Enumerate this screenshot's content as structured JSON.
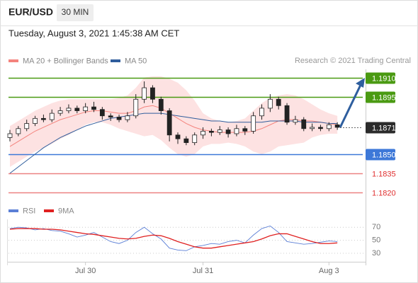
{
  "header": {
    "symbol": "EUR/USD",
    "interval": "30 MIN",
    "timestamp": "Tuesday, August 3, 2021 1:45:38 AM CET",
    "attribution": "Research © 2021 Trading Central"
  },
  "chart_data": [
    {
      "type": "candlestick",
      "ylim": [
        1.181,
        1.1917
      ],
      "up_color": "#ffffff",
      "down_color": "#222222",
      "open": [
        1.1863,
        1.1866,
        1.187,
        1.1874,
        1.1878,
        1.1877,
        1.1882,
        1.1884,
        1.1886,
        1.1884,
        1.1887,
        1.1885,
        1.188,
        1.1879,
        1.1877,
        1.188,
        1.1893,
        1.1902,
        1.1893,
        1.1884,
        1.1865,
        1.1862,
        1.1859,
        1.1865,
        1.1868,
        1.1867,
        1.1869,
        1.1866,
        1.187,
        1.1868,
        1.188,
        1.1886,
        1.1893,
        1.1888,
        1.1875,
        1.1877,
        1.187,
        1.1871,
        1.187,
        1.1873
      ],
      "high": [
        1.1869,
        1.1872,
        1.1877,
        1.188,
        1.1881,
        1.1885,
        1.1887,
        1.1889,
        1.1888,
        1.189,
        1.1891,
        1.1887,
        1.1882,
        1.1881,
        1.1883,
        1.1897,
        1.1907,
        1.1904,
        1.1895,
        1.1886,
        1.1867,
        1.1864,
        1.1867,
        1.1871,
        1.187,
        1.1872,
        1.1871,
        1.1873,
        1.1872,
        1.1883,
        1.1889,
        1.1897,
        1.1895,
        1.189,
        1.188,
        1.1879,
        1.1874,
        1.1873,
        1.1875,
        1.1875
      ],
      "low": [
        1.186,
        1.1864,
        1.1868,
        1.1872,
        1.1875,
        1.1875,
        1.188,
        1.1882,
        1.1882,
        1.1882,
        1.1883,
        1.1877,
        1.1876,
        1.1875,
        1.1875,
        1.1878,
        1.189,
        1.189,
        1.1881,
        1.186,
        1.1858,
        1.1857,
        1.1857,
        1.1862,
        1.1864,
        1.1865,
        1.1863,
        1.1864,
        1.1865,
        1.1866,
        1.1877,
        1.1883,
        1.1885,
        1.1873,
        1.1873,
        1.1868,
        1.1868,
        1.1868,
        1.1868,
        1.1869
      ],
      "close": [
        1.1866,
        1.187,
        1.1874,
        1.1878,
        1.1877,
        1.1882,
        1.1884,
        1.1886,
        1.1884,
        1.1887,
        1.1885,
        1.188,
        1.1879,
        1.1877,
        1.188,
        1.1893,
        1.1902,
        1.1893,
        1.1884,
        1.1865,
        1.1862,
        1.1859,
        1.1865,
        1.1868,
        1.1867,
        1.1869,
        1.1866,
        1.187,
        1.1868,
        1.188,
        1.1886,
        1.1893,
        1.1888,
        1.1875,
        1.1877,
        1.187,
        1.1871,
        1.187,
        1.1873,
        1.1871
      ],
      "series": [
        {
          "name": "MA 20 + Bollinger Bands",
          "color": "#f4837d",
          "band_color": "#fde2e2",
          "values": [
            1.1856,
            1.186,
            1.1864,
            1.1868,
            1.1871,
            1.1874,
            1.1877,
            1.1879,
            1.1881,
            1.1883,
            1.1884,
            1.1884,
            1.1883,
            1.1882,
            1.1882,
            1.1884,
            1.1887,
            1.1888,
            1.1886,
            1.1882,
            1.1878,
            1.1874,
            1.1871,
            1.1869,
            1.1868,
            1.1867,
            1.1867,
            1.1867,
            1.1867,
            1.1868,
            1.187,
            1.1873,
            1.1876,
            1.1877,
            1.1877,
            1.1876,
            1.1876,
            1.1875,
            1.1874,
            1.1873
          ],
          "upper": [
            1.1872,
            1.1876,
            1.188,
            1.1884,
            1.1887,
            1.189,
            1.1892,
            1.1893,
            1.1893,
            1.1893,
            1.1893,
            1.1893,
            1.1893,
            1.1894,
            1.1896,
            1.1902,
            1.191,
            1.1911,
            1.1911,
            1.1909,
            1.1906,
            1.19,
            1.1892,
            1.1882,
            1.1878,
            1.1876,
            1.1875,
            1.1876,
            1.1878,
            1.1884,
            1.189,
            1.1894,
            1.1896,
            1.1897,
            1.1896,
            1.1893,
            1.1889,
            1.1885,
            1.1882,
            1.188
          ],
          "lower": [
            1.184,
            1.1844,
            1.1848,
            1.1852,
            1.1855,
            1.1858,
            1.1862,
            1.1865,
            1.1869,
            1.1873,
            1.1875,
            1.1875,
            1.1873,
            1.187,
            1.1868,
            1.1866,
            1.1864,
            1.1865,
            1.1861,
            1.1855,
            1.185,
            1.1848,
            1.185,
            1.1856,
            1.1858,
            1.1858,
            1.1859,
            1.1858,
            1.1856,
            1.1852,
            1.185,
            1.1852,
            1.1856,
            1.1857,
            1.1858,
            1.1859,
            1.1863,
            1.1865,
            1.1866,
            1.1866
          ]
        },
        {
          "name": "MA 50",
          "color": "#2f5d9c",
          "values": [
            1.1835,
            1.184,
            1.1845,
            1.185,
            1.1855,
            1.1859,
            1.1863,
            1.1866,
            1.1869,
            1.1872,
            1.1874,
            1.1876,
            1.1878,
            1.1879,
            1.188,
            1.1881,
            1.1882,
            1.1882,
            1.1882,
            1.1881,
            1.188,
            1.1879,
            1.1878,
            1.1877,
            1.1876,
            1.1876,
            1.1875,
            1.1875,
            1.1875,
            1.1875,
            1.1875,
            1.1876,
            1.1876,
            1.1876,
            1.1876,
            1.1875,
            1.1875,
            1.1875,
            1.1874,
            1.1874
          ]
        }
      ],
      "levels": [
        {
          "value": 1.191,
          "label": "1.1910",
          "color": "#4a9a12",
          "boxed": true
        },
        {
          "value": 1.1895,
          "label": "1.1895",
          "color": "#4a9a12",
          "boxed": true
        },
        {
          "value": 1.1871,
          "label": "1.1871",
          "color": "#2b2b2b",
          "boxed": true,
          "dotted": true
        },
        {
          "value": 1.185,
          "label": "1.1850",
          "color": "#3d78d8",
          "boxed": true
        },
        {
          "value": 1.1835,
          "label": "1.1835",
          "color": "#e03030",
          "boxed": false
        },
        {
          "value": 1.182,
          "label": "1.1820",
          "color": "#e03030",
          "boxed": false
        }
      ]
    },
    {
      "type": "line",
      "ylim": [
        17,
        80
      ],
      "yticks": [
        30,
        50,
        70
      ],
      "categories": [
        null,
        null,
        null,
        null,
        null,
        null,
        null,
        null,
        null,
        "Jul 30",
        null,
        null,
        null,
        null,
        null,
        null,
        null,
        null,
        null,
        null,
        null,
        null,
        null,
        "Jul 31",
        null,
        null,
        null,
        null,
        null,
        null,
        null,
        null,
        null,
        null,
        null,
        null,
        null,
        null,
        "Aug 3",
        null
      ],
      "series": [
        {
          "name": "RSI",
          "color": "#5b7fd6",
          "values": [
            68,
            70,
            69,
            66,
            68,
            65,
            64,
            60,
            55,
            58,
            62,
            55,
            48,
            45,
            50,
            62,
            70,
            60,
            52,
            38,
            35,
            34,
            40,
            42,
            45,
            44,
            48,
            50,
            46,
            58,
            68,
            72,
            62,
            48,
            46,
            44,
            45,
            47,
            49,
            48
          ]
        },
        {
          "name": "9MA",
          "color": "#e02020",
          "values": [
            67,
            68,
            68,
            68,
            67,
            67,
            66,
            64,
            62,
            60,
            59,
            57,
            55,
            53,
            52,
            53,
            56,
            58,
            57,
            53,
            48,
            44,
            40,
            38,
            38,
            40,
            42,
            44,
            46,
            48,
            52,
            57,
            60,
            60,
            56,
            52,
            48,
            45,
            45,
            46
          ]
        }
      ]
    }
  ]
}
